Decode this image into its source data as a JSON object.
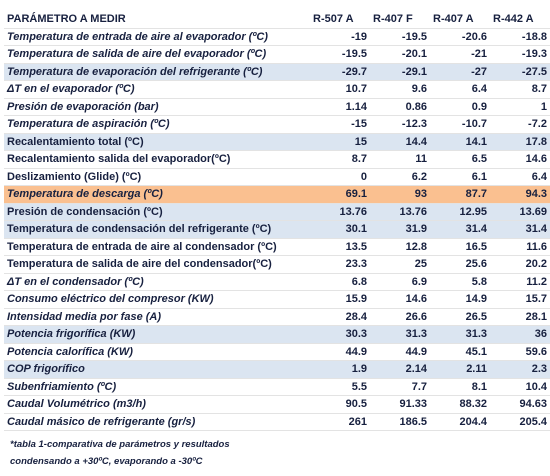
{
  "table": {
    "header": [
      "PARÁMETRO A MEDIR",
      "R-507 A",
      "R-407 F",
      "R-407 A",
      "R-442 A"
    ],
    "rows": [
      {
        "label": "Temperatura de entrada de aire al evaporador (ºC)",
        "values": [
          -19,
          -19.5,
          -20.6,
          -18.8
        ],
        "italic": true
      },
      {
        "label": "Temperatura de salida de aire del evaporador (ºC)",
        "values": [
          -19.5,
          -20.1,
          -21,
          -19.3
        ],
        "italic": true
      },
      {
        "label": "Temperatura de evaporación del refrigerante (ºC)",
        "values": [
          -29.7,
          -29.1,
          -27,
          -27.5
        ],
        "italic": true,
        "highlight": "#dbe5f1"
      },
      {
        "label": "ΔT en el evaporador (ºC)",
        "values": [
          10.7,
          9.6,
          6.4,
          8.7
        ],
        "italic": true
      },
      {
        "label": "Presión de evaporación (bar)",
        "values": [
          1.14,
          0.86,
          0.9,
          1
        ],
        "italic": true
      },
      {
        "label": "Temperatura de aspiración  (ºC)",
        "values": [
          -15,
          -12.3,
          -10.7,
          -7.2
        ],
        "italic": true
      },
      {
        "label": "Recalentamiento total (ºC)",
        "values": [
          15,
          14.4,
          14.1,
          17.8
        ],
        "highlight": "#dbe5f1"
      },
      {
        "label": "Recalentamiento salida del evaporador(ºC)",
        "values": [
          8.7,
          11,
          6.5,
          14.6
        ]
      },
      {
        "label": "Deslizamiento (Glide) (ºC)",
        "values": [
          0,
          6.2,
          6.1,
          6.4
        ]
      },
      {
        "label": "Temperatura de descarga (ºC)",
        "values": [
          69.1,
          93,
          87.7,
          94.3
        ],
        "italic": true,
        "highlight": "#fac090"
      },
      {
        "label": "Presión de condensación  (ºC)",
        "values": [
          13.76,
          13.76,
          12.95,
          13.69
        ],
        "highlight": "#dbe5f1"
      },
      {
        "label": "Temperatura de condensación del refrigerante (ºC)",
        "values": [
          30.1,
          31.9,
          31.4,
          31.4
        ],
        "highlight": "#dbe5f1"
      },
      {
        "label": "Temperatura de entrada de aire al condensador (ºC)",
        "values": [
          13.5,
          12.8,
          16.5,
          11.6
        ]
      },
      {
        "label": "Temperatura de salida de aire del condensador(ºC)",
        "values": [
          23.3,
          25,
          25.6,
          20.2
        ]
      },
      {
        "label": "ΔT en el condensador (ºC)",
        "values": [
          6.8,
          6.9,
          5.8,
          11.2
        ],
        "italic": true
      },
      {
        "label": "Consumo eléctrico del compresor (KW)",
        "values": [
          15.9,
          14.6,
          14.9,
          15.7
        ],
        "italic": true
      },
      {
        "label": "Intensidad media por fase (A)",
        "values": [
          28.4,
          26.6,
          26.5,
          28.1
        ],
        "italic": true
      },
      {
        "label": "Potencia frigorífica (KW)",
        "values": [
          30.3,
          31.3,
          31.3,
          36
        ],
        "italic": true,
        "highlight": "#dbe5f1"
      },
      {
        "label": "Potencia calorífica (KW)",
        "values": [
          44.9,
          44.9,
          45.1,
          59.6
        ],
        "italic": true
      },
      {
        "label": "COP frigorífico",
        "values": [
          1.9,
          2.14,
          2.11,
          2.3
        ],
        "italic": true,
        "highlight": "#dbe5f1"
      },
      {
        "label": "Subenfriamiento (ºC)",
        "values": [
          5.5,
          7.7,
          8.1,
          10.4
        ],
        "italic": true
      },
      {
        "label": "Caudal Volumétrico (m3/h)",
        "values": [
          90.5,
          91.33,
          88.32,
          94.63
        ],
        "italic": true
      },
      {
        "label": "Caudal másico de refrigerante (gr/s)",
        "values": [
          261,
          186.5,
          204.4,
          205.4
        ],
        "italic": true
      }
    ]
  },
  "footnote": [
    "*tabla 1-comparativa de parámetros y resultados",
    "condensando a +30ºC, evaporando a -30ºC"
  ]
}
